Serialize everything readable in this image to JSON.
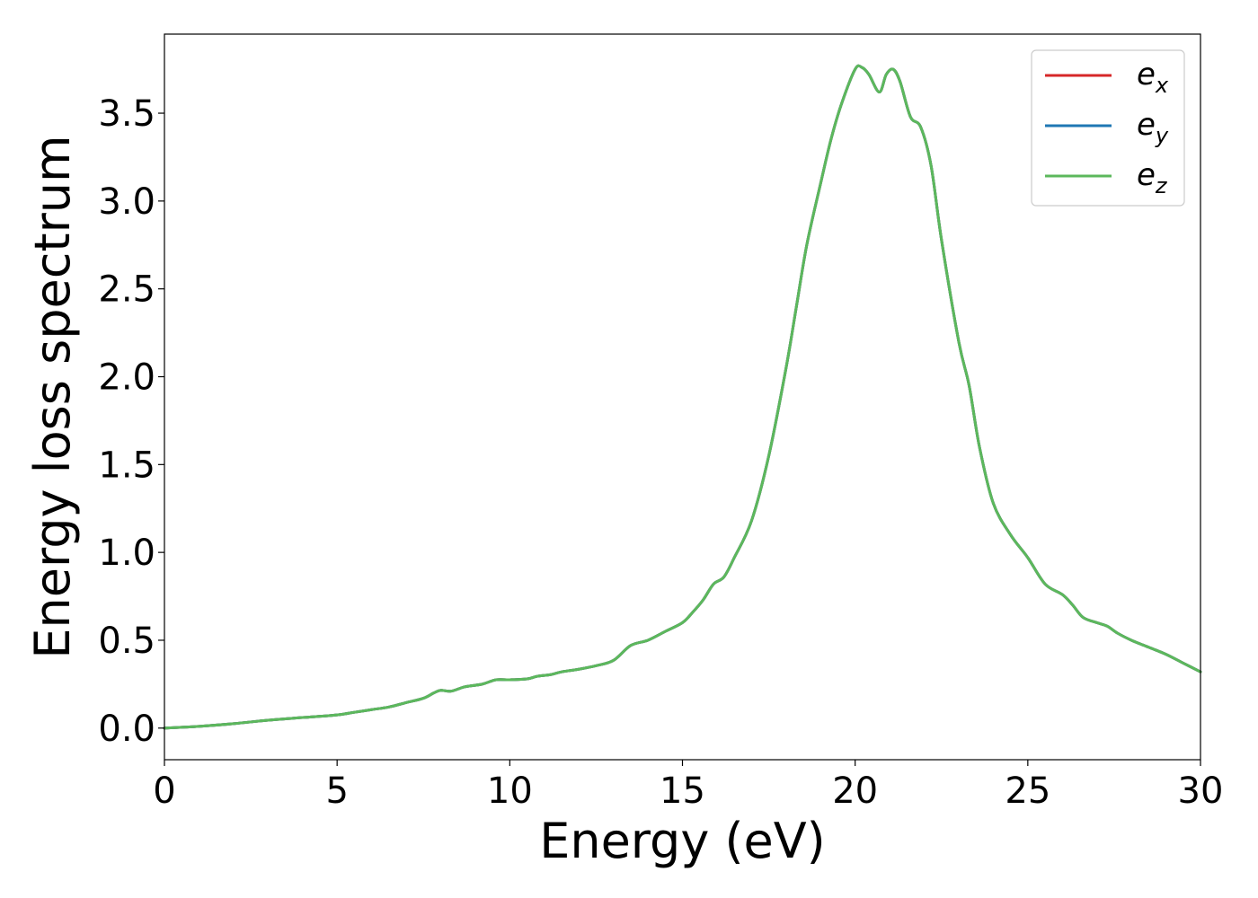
{
  "chart_data": {
    "type": "line",
    "title": "",
    "xlabel": "Energy (eV)",
    "ylabel": "Energy loss spectrum",
    "xlim": [
      0,
      30
    ],
    "ylim": [
      -0.18,
      3.95
    ],
    "xticks": [
      0,
      5,
      10,
      15,
      20,
      25,
      30
    ],
    "yticks": [
      0.0,
      0.5,
      1.0,
      1.5,
      2.0,
      2.5,
      3.0,
      3.5
    ],
    "xtick_labels": [
      "0",
      "5",
      "10",
      "15",
      "20",
      "25",
      "30"
    ],
    "ytick_labels": [
      "0.0",
      "0.5",
      "1.0",
      "1.5",
      "2.0",
      "2.5",
      "3.0",
      "3.5"
    ],
    "grid": false,
    "legend_position": "top-right",
    "x": [
      0,
      1,
      2,
      3,
      4,
      5,
      5.5,
      6,
      6.5,
      7,
      7.5,
      7.8,
      8.0,
      8.3,
      8.7,
      9.2,
      9.6,
      10,
      10.5,
      10.8,
      11.2,
      11.5,
      12,
      12.5,
      13,
      13.5,
      14,
      14.5,
      15,
      15.3,
      15.6,
      15.9,
      16.2,
      16.5,
      17,
      17.5,
      18,
      18.3,
      18.6,
      19,
      19.3,
      19.6,
      20,
      20.2,
      20.4,
      20.7,
      20.9,
      21.1,
      21.3,
      21.6,
      21.9,
      22.2,
      22.5,
      23,
      23.3,
      23.6,
      24,
      24.5,
      25,
      25.5,
      26,
      26.3,
      26.6,
      27,
      27.3,
      27.6,
      28,
      28.5,
      29,
      29.5,
      30
    ],
    "series": [
      {
        "name": "e_x",
        "legend_base": "e",
        "legend_sub": "x",
        "color": "#d62728",
        "y": [
          0.0,
          0.01,
          0.025,
          0.045,
          0.06,
          0.075,
          0.09,
          0.105,
          0.12,
          0.145,
          0.17,
          0.2,
          0.215,
          0.21,
          0.235,
          0.25,
          0.275,
          0.275,
          0.28,
          0.295,
          0.305,
          0.32,
          0.335,
          0.355,
          0.385,
          0.47,
          0.5,
          0.55,
          0.6,
          0.66,
          0.73,
          0.82,
          0.86,
          0.97,
          1.18,
          1.55,
          2.05,
          2.4,
          2.75,
          3.1,
          3.35,
          3.55,
          3.75,
          3.76,
          3.72,
          3.62,
          3.72,
          3.75,
          3.68,
          3.48,
          3.42,
          3.2,
          2.78,
          2.2,
          1.95,
          1.6,
          1.28,
          1.1,
          0.97,
          0.82,
          0.76,
          0.7,
          0.63,
          0.6,
          0.58,
          0.54,
          0.5,
          0.46,
          0.42,
          0.37,
          0.32
        ]
      },
      {
        "name": "e_y",
        "legend_base": "e",
        "legend_sub": "y",
        "color": "#1f77b4",
        "y": [
          0.0,
          0.01,
          0.025,
          0.045,
          0.06,
          0.075,
          0.09,
          0.105,
          0.12,
          0.145,
          0.17,
          0.2,
          0.215,
          0.21,
          0.235,
          0.25,
          0.275,
          0.275,
          0.28,
          0.295,
          0.305,
          0.32,
          0.335,
          0.355,
          0.385,
          0.47,
          0.5,
          0.55,
          0.6,
          0.66,
          0.73,
          0.82,
          0.86,
          0.97,
          1.18,
          1.55,
          2.05,
          2.4,
          2.75,
          3.1,
          3.35,
          3.55,
          3.75,
          3.76,
          3.72,
          3.62,
          3.72,
          3.75,
          3.68,
          3.48,
          3.42,
          3.2,
          2.78,
          2.2,
          1.95,
          1.6,
          1.28,
          1.1,
          0.97,
          0.82,
          0.76,
          0.7,
          0.63,
          0.6,
          0.58,
          0.54,
          0.5,
          0.46,
          0.42,
          0.37,
          0.32
        ]
      },
      {
        "name": "e_z",
        "legend_base": "e",
        "legend_sub": "z",
        "color": "#5cb85c",
        "y": [
          0.0,
          0.01,
          0.025,
          0.045,
          0.06,
          0.075,
          0.09,
          0.105,
          0.12,
          0.145,
          0.17,
          0.2,
          0.215,
          0.21,
          0.235,
          0.25,
          0.275,
          0.275,
          0.28,
          0.295,
          0.305,
          0.32,
          0.335,
          0.355,
          0.385,
          0.47,
          0.5,
          0.55,
          0.6,
          0.66,
          0.73,
          0.82,
          0.86,
          0.97,
          1.18,
          1.55,
          2.05,
          2.4,
          2.75,
          3.1,
          3.35,
          3.55,
          3.75,
          3.76,
          3.72,
          3.62,
          3.72,
          3.75,
          3.68,
          3.48,
          3.42,
          3.2,
          2.78,
          2.2,
          1.95,
          1.6,
          1.28,
          1.1,
          0.97,
          0.82,
          0.76,
          0.7,
          0.63,
          0.6,
          0.58,
          0.54,
          0.5,
          0.46,
          0.42,
          0.37,
          0.32
        ]
      }
    ]
  }
}
